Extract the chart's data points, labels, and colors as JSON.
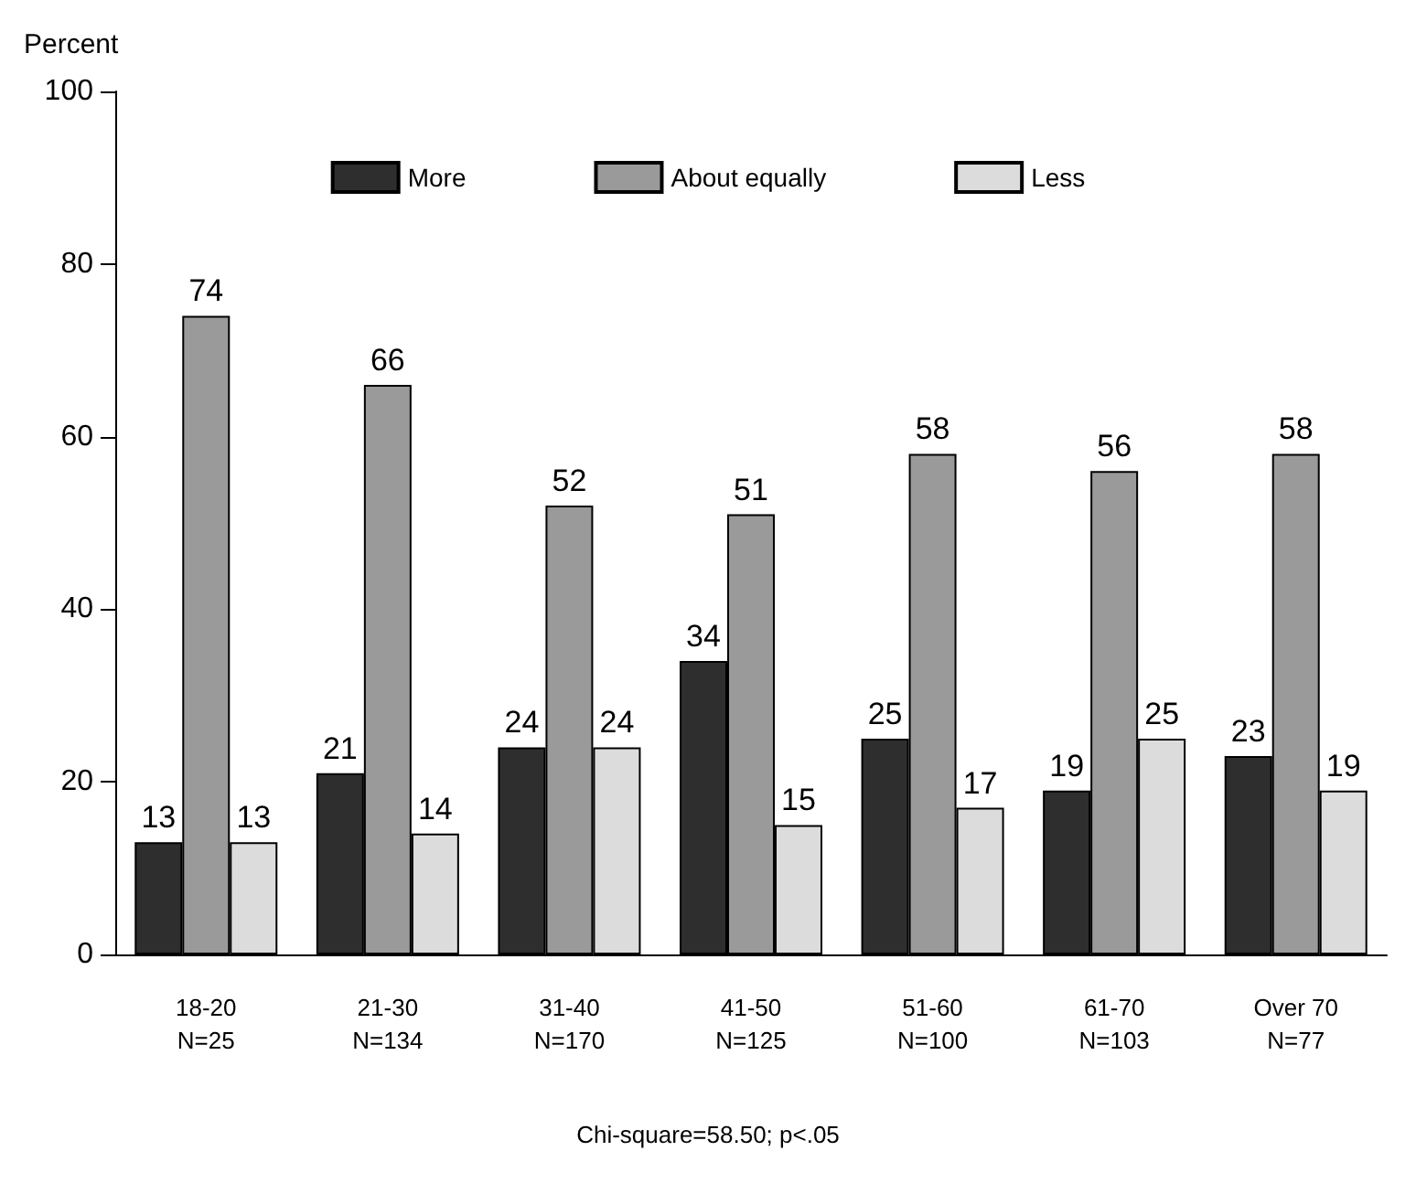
{
  "chart_data": {
    "type": "bar",
    "ylabel": "Percent",
    "categories": [
      "18-20\nN=25",
      "21-30\nN=134",
      "31-40\nN=170",
      "41-50\nN=125",
      "51-60\nN=100",
      "61-70\nN=103",
      "Over 70\nN=77"
    ],
    "series": [
      {
        "name": "More",
        "color": "#2e2e2e",
        "values": [
          13,
          21,
          24,
          34,
          25,
          19,
          23
        ]
      },
      {
        "name": "About equally",
        "color": "#9a9a9a",
        "values": [
          74,
          66,
          52,
          51,
          58,
          56,
          58
        ]
      },
      {
        "name": "Less",
        "color": "#dcdcdc",
        "values": [
          13,
          14,
          24,
          15,
          17,
          25,
          19
        ]
      }
    ],
    "ylim": [
      0,
      100
    ],
    "yticks": [
      0,
      20,
      40,
      60,
      80,
      100
    ],
    "grid": false,
    "legend": "top",
    "data_labels": true,
    "annotations": [
      "Chi-square=58.50; p<.05"
    ]
  }
}
